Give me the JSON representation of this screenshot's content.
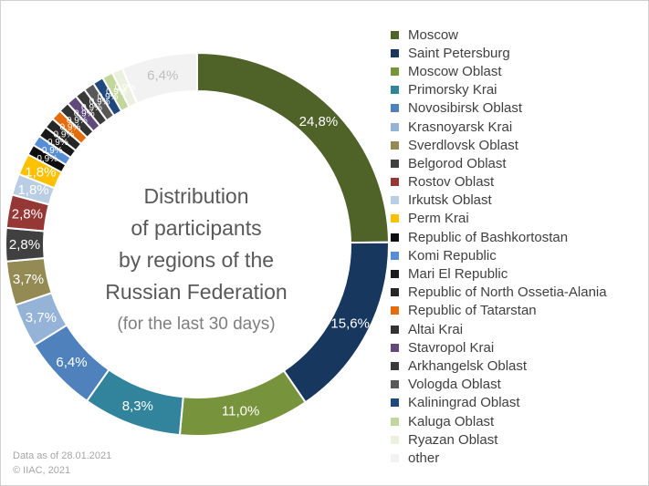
{
  "chart_data": {
    "type": "pie",
    "donut": true,
    "title_lines": [
      "Distribution",
      "of participants",
      "by regions of the",
      "Russian Federation"
    ],
    "subtitle": "(for the last 30 days)",
    "slices": [
      {
        "name": "Moscow",
        "value": 24.8,
        "label": "24,8%",
        "color": "#4f6228"
      },
      {
        "name": "Saint Petersburg",
        "value": 15.6,
        "label": "15,6%",
        "color": "#17375e"
      },
      {
        "name": "Moscow Oblast",
        "value": 11.0,
        "label": "11,0%",
        "color": "#77933c"
      },
      {
        "name": "Primorsky Krai",
        "value": 8.3,
        "label": "8,3%",
        "color": "#31849b"
      },
      {
        "name": "Novosibirsk Oblast",
        "value": 6.4,
        "label": "6,4%",
        "color": "#4f81bd"
      },
      {
        "name": "Krasnoyarsk Krai",
        "value": 3.7,
        "label": "3,7%",
        "color": "#95b3d7"
      },
      {
        "name": "Sverdlovsk Oblast",
        "value": 3.7,
        "label": "3,7%",
        "color": "#948a54"
      },
      {
        "name": "Belgorod Oblast",
        "value": 2.8,
        "label": "2,8%",
        "color": "#404040"
      },
      {
        "name": "Rostov Oblast",
        "value": 2.8,
        "label": "2,8%",
        "color": "#953735"
      },
      {
        "name": "Irkutsk Oblast",
        "value": 1.8,
        "label": "1,8%",
        "color": "#b9cde5"
      },
      {
        "name": "Perm Krai",
        "value": 1.8,
        "label": "1,8%",
        "color": "#ffc000"
      },
      {
        "name": "Republic of Bashkortostan",
        "value": 0.9,
        "label": "0,9%",
        "color": "#0d0d0d"
      },
      {
        "name": "Komi Republic",
        "value": 0.9,
        "label": "0,9%",
        "color": "#558ed5"
      },
      {
        "name": "Mari El Republic",
        "value": 0.9,
        "label": "0,9%",
        "color": "#1a1a1a"
      },
      {
        "name": "Republic of North Ossetia-Alania",
        "value": 0.9,
        "label": "0,9%",
        "color": "#262626"
      },
      {
        "name": "Republic of Tatarstan",
        "value": 0.9,
        "label": "0,9%",
        "color": "#e46c0a"
      },
      {
        "name": "Altai Krai",
        "value": 0.9,
        "label": "0,9%",
        "color": "#333333"
      },
      {
        "name": "Stavropol Krai",
        "value": 0.9,
        "label": "0,9%",
        "color": "#604a7b"
      },
      {
        "name": "Arkhangelsk Oblast",
        "value": 0.9,
        "label": "0,9%",
        "color": "#3a3a3a"
      },
      {
        "name": "Vologda Oblast",
        "value": 0.9,
        "label": "0,9%",
        "color": "#595959"
      },
      {
        "name": "Kaliningrad Oblast",
        "value": 0.9,
        "label": "0,9%",
        "color": "#1f497d"
      },
      {
        "name": "Kaluga Oblast",
        "value": 0.9,
        "label": "0,9%",
        "color": "#c3d69b"
      },
      {
        "name": "Ryazan Oblast",
        "value": 0.9,
        "label": "0,9%",
        "color": "#ebf1de"
      },
      {
        "name": "other",
        "value": 6.4,
        "label": "6,4%",
        "color": "#f2f2f2"
      }
    ],
    "legend_position": "right"
  },
  "footer": {
    "date_line": "Data as of 28.01.2021",
    "copyright": "© IIAC, 2021"
  }
}
